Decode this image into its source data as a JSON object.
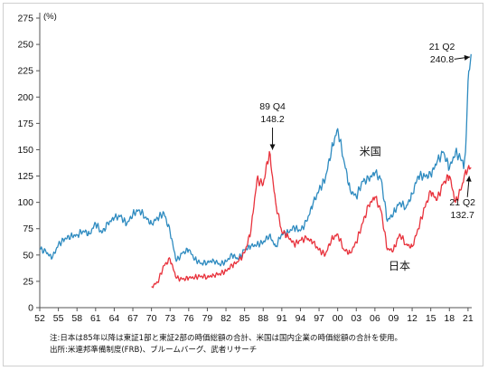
{
  "chart_data": {
    "type": "line",
    "unit_label": "(%)",
    "ylim": [
      0,
      275
    ],
    "y_ticks": [
      0,
      25,
      50,
      75,
      100,
      125,
      150,
      175,
      200,
      225,
      250,
      275
    ],
    "x_ticks": [
      "52",
      "55",
      "58",
      "61",
      "64",
      "67",
      "70",
      "73",
      "76",
      "79",
      "82",
      "85",
      "88",
      "91",
      "94",
      "97",
      "00",
      "03",
      "06",
      "09",
      "12",
      "15",
      "18",
      "21"
    ],
    "x_tick_years": [
      1952,
      1955,
      1958,
      1961,
      1964,
      1967,
      1970,
      1973,
      1976,
      1979,
      1982,
      1985,
      1988,
      1991,
      1994,
      1997,
      2000,
      2003,
      2006,
      2009,
      2012,
      2015,
      2018,
      2021
    ],
    "xlim": [
      1952,
      2021.6
    ],
    "grid": false,
    "colors": {
      "us": "#2e8bc0",
      "japan": "#e8323c",
      "axis": "#555555",
      "text": "#111111"
    },
    "series": [
      {
        "name": "米国",
        "key": "us",
        "x": [
          1952,
          1953,
          1954,
          1955,
          1956,
          1957,
          1958,
          1959,
          1960,
          1961,
          1962,
          1963,
          1964,
          1965,
          1966,
          1967,
          1968,
          1969,
          1970,
          1971,
          1972,
          1973,
          1974,
          1975,
          1976,
          1977,
          1978,
          1979,
          1980,
          1981,
          1982,
          1983,
          1984,
          1985,
          1986,
          1987,
          1988,
          1989,
          1990,
          1991,
          1992,
          1993,
          1994,
          1995,
          1996,
          1997,
          1998,
          1999,
          2000,
          2001,
          2002,
          2003,
          2004,
          2005,
          2006,
          2007,
          2008,
          2009,
          2010,
          2011,
          2012,
          2013,
          2014,
          2015,
          2016,
          2017,
          2018,
          2019,
          2020,
          2020.3,
          2020.6,
          2021,
          2021.5
        ],
        "values": [
          56,
          53,
          47,
          60,
          65,
          68,
          69,
          73,
          70,
          80,
          71,
          80,
          85,
          87,
          79,
          89,
          93,
          86,
          80,
          85,
          90,
          72,
          44,
          52,
          55,
          46,
          42,
          43,
          45,
          41,
          44,
          50,
          46,
          55,
          58,
          60,
          62,
          69,
          58,
          70,
          72,
          76,
          73,
          82,
          98,
          112,
          122,
          150,
          170,
          140,
          112,
          105,
          120,
          122,
          128,
          122,
          82,
          90,
          100,
          95,
          108,
          125,
          125,
          126,
          138,
          148,
          132,
          148,
          140,
          132,
          148,
          215,
          240.8
        ]
      },
      {
        "name": "日本",
        "key": "japan",
        "x": [
          1970,
          1971,
          1972,
          1973,
          1974,
          1975,
          1976,
          1977,
          1978,
          1979,
          1980,
          1981,
          1982,
          1983,
          1984,
          1985,
          1986,
          1987,
          1988,
          1989,
          1990,
          1991,
          1992,
          1993,
          1994,
          1995,
          1996,
          1997,
          1998,
          1999,
          2000,
          2001,
          2002,
          2003,
          2004,
          2005,
          2006,
          2007,
          2008,
          2009,
          2010,
          2011,
          2012,
          2013,
          2014,
          2015,
          2016,
          2017,
          2018,
          2019,
          2020,
          2020.5,
          2021,
          2021.5
        ],
        "values": [
          20,
          24,
          40,
          46,
          28,
          27,
          28,
          29,
          30,
          29,
          31,
          32,
          35,
          40,
          44,
          52,
          72,
          122,
          117,
          148.2,
          100,
          72,
          68,
          60,
          64,
          66,
          62,
          55,
          50,
          65,
          70,
          55,
          52,
          62,
          80,
          97,
          105,
          92,
          55,
          55,
          70,
          60,
          58,
          75,
          95,
          110,
          102,
          118,
          125,
          100,
          115,
          128,
          132.7,
          133
        ]
      }
    ],
    "annotations": [
      {
        "key": "peak_japan",
        "line1": "89 Q4",
        "line2": "148.2"
      },
      {
        "key": "end_us",
        "line1": "21 Q2",
        "line2": "240.8"
      },
      {
        "key": "end_japan",
        "line1": "21 Q2",
        "line2": "132.7"
      }
    ],
    "series_labels": {
      "us": "米国",
      "japan": "日本"
    }
  },
  "notes": {
    "line1": "注:日本は85年以降は東証1部と東証2部の時価総額の合計、米国は国内企業の時価総額の合計を使用。",
    "line2": "出所:米連邦準備制度(FRB)、ブルームバーグ、武者リサーチ"
  }
}
